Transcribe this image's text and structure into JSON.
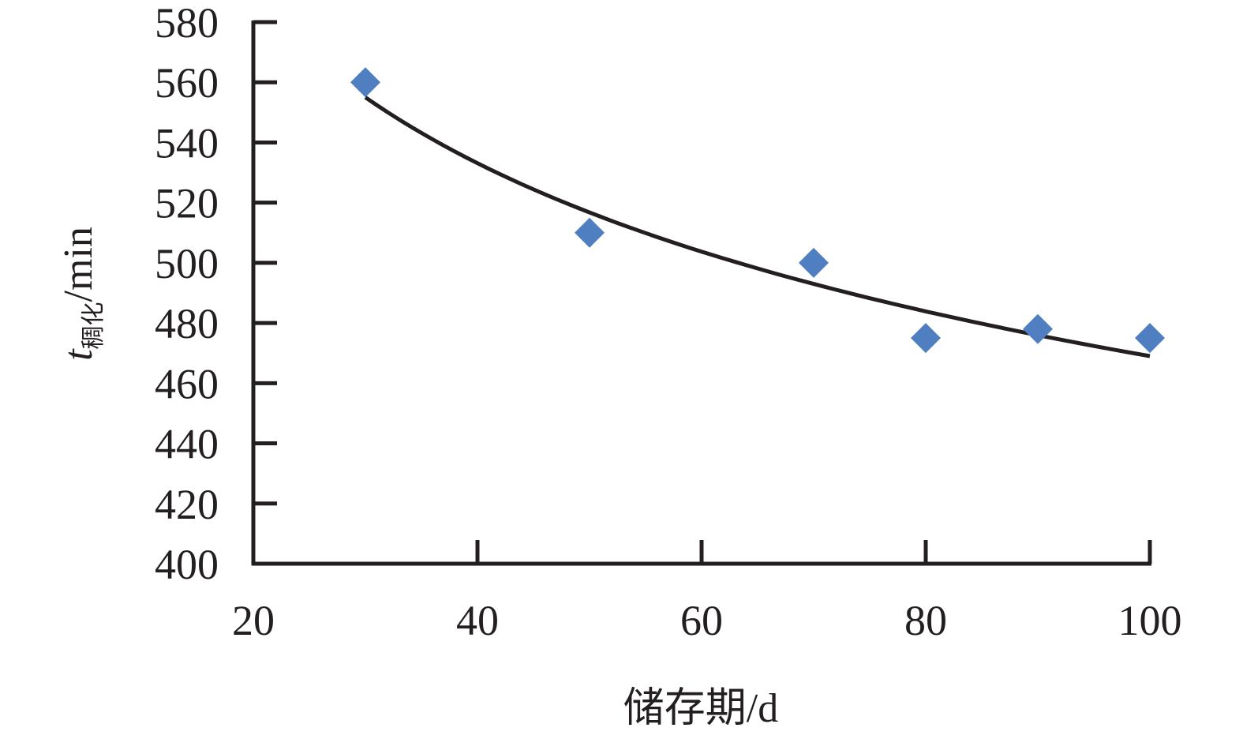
{
  "chart_data": {
    "type": "scatter",
    "xlabel": "储存期/d",
    "ylabel": {
      "main": "t",
      "subscript": "稠化",
      "unit": "/min"
    },
    "xlim": [
      20,
      100
    ],
    "ylim": [
      400,
      580
    ],
    "xticks": [
      20,
      40,
      60,
      80,
      100
    ],
    "yticks": [
      400,
      420,
      440,
      460,
      480,
      500,
      520,
      540,
      560,
      580
    ],
    "grid": false,
    "series": [
      {
        "marker": "diamond",
        "color": "#4f7ec1",
        "x": [
          30,
          50,
          70,
          80,
          90,
          100
        ],
        "y": [
          560,
          510,
          500,
          475,
          478,
          475
        ]
      }
    ],
    "trendline": {
      "type": "power",
      "color": "#231f20",
      "x_range": [
        30,
        100
      ],
      "y_start": 555,
      "y_end": 469
    }
  }
}
